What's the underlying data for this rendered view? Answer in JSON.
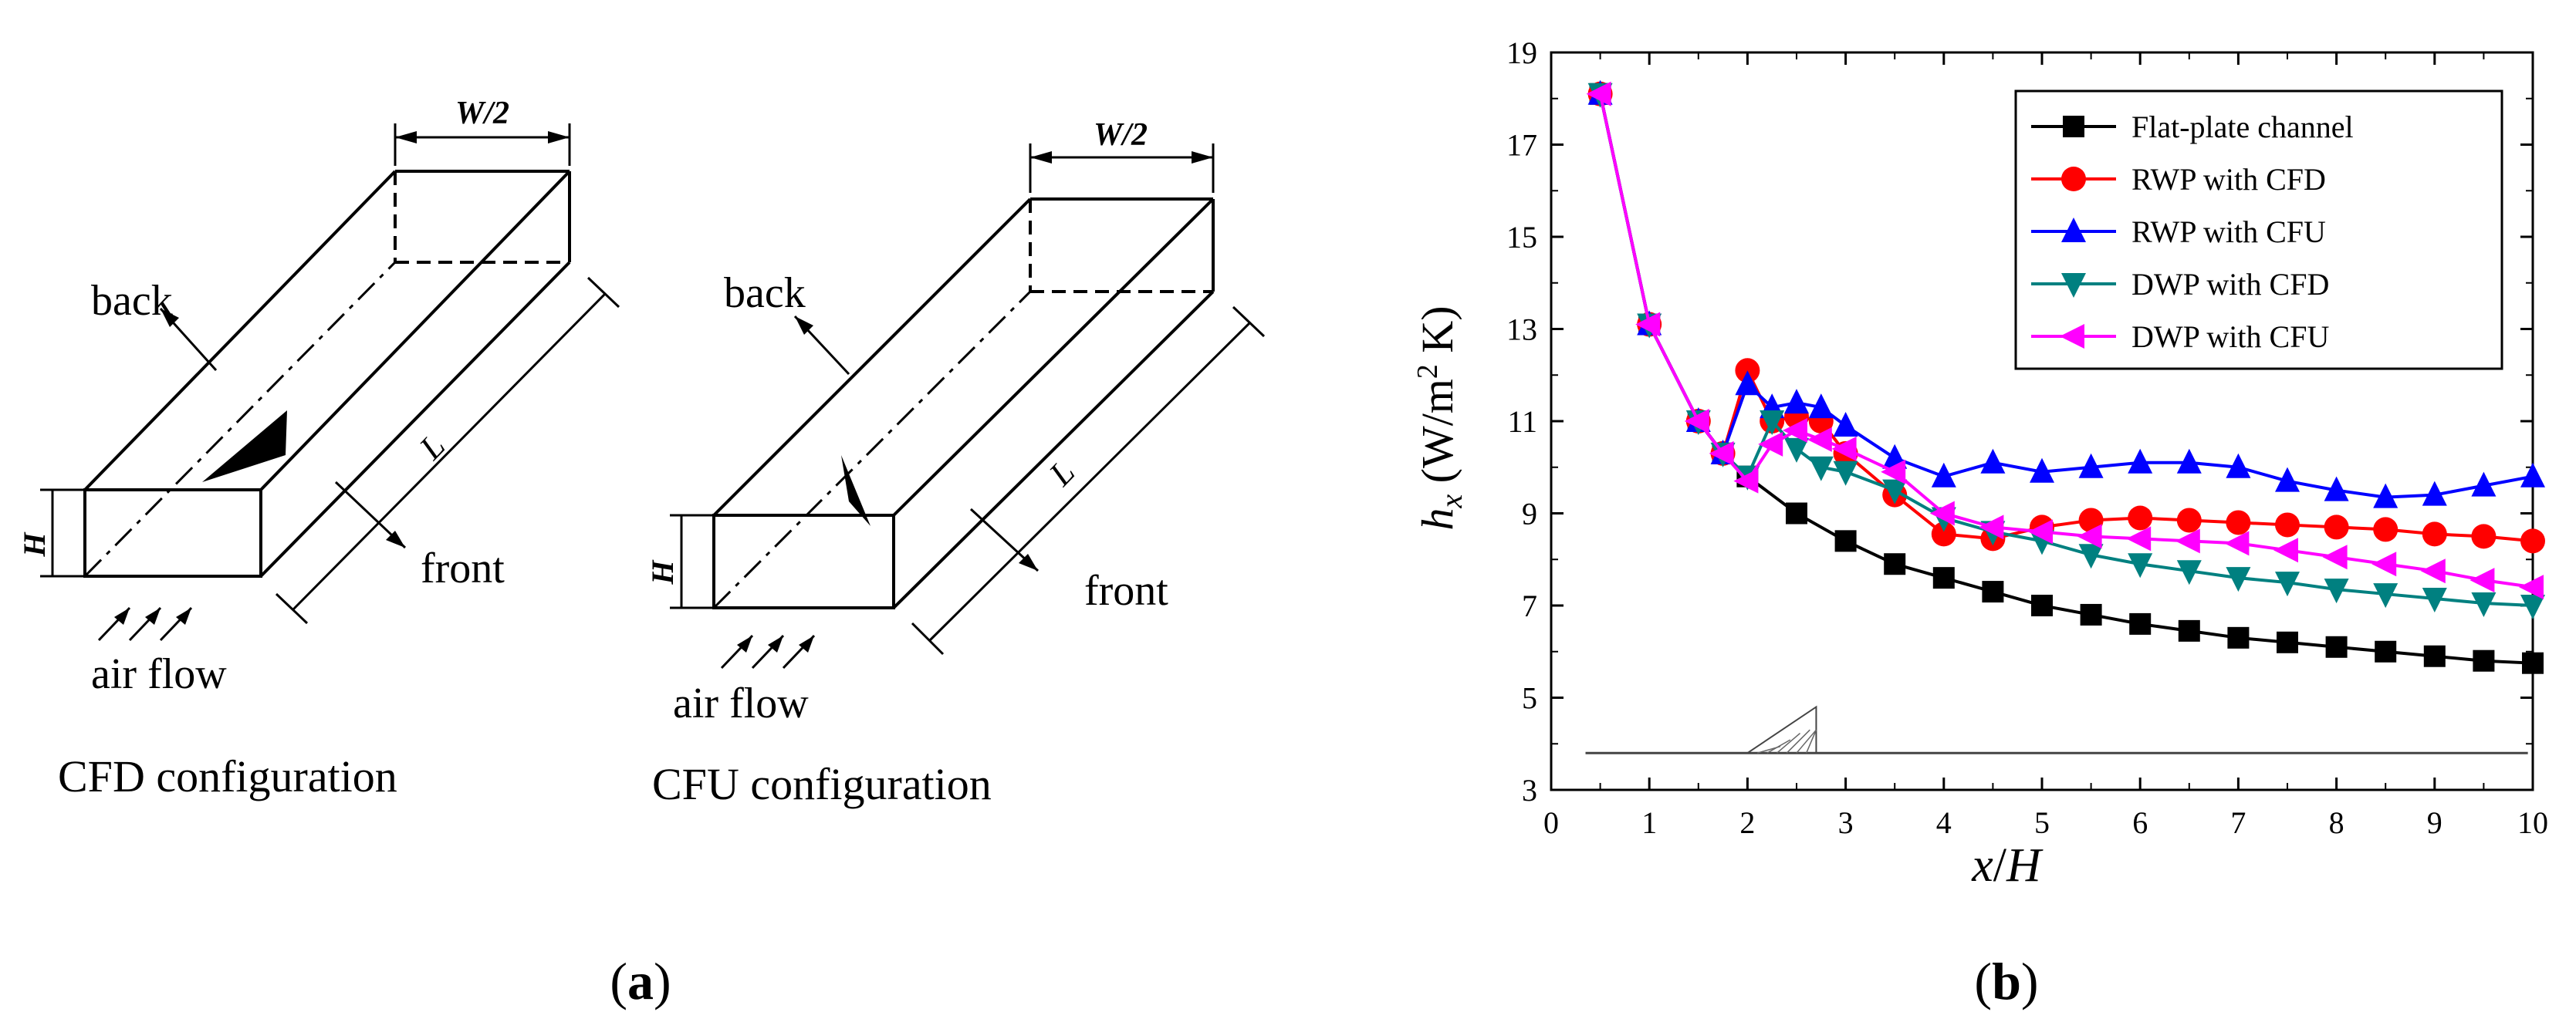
{
  "panel_a": {
    "left_diagram": {
      "dim_width": "W/2",
      "dim_length": "L",
      "dim_height": "H",
      "label_back": "back",
      "label_front": "front",
      "label_airflow": "air flow",
      "caption": "CFD configuration"
    },
    "right_diagram": {
      "dim_width": "W/2",
      "dim_length": "L",
      "dim_height": "H",
      "label_back": "back",
      "label_front": "front",
      "label_airflow": "air flow",
      "caption": "CFU configuration"
    },
    "panel_label": "a"
  },
  "panel_b": {
    "panel_label": "b"
  },
  "chart_data": {
    "type": "line",
    "xlabel": "x/H",
    "ylabel": "hx (W/m2 K)",
    "xlim": [
      0,
      10
    ],
    "ylim": [
      3,
      19
    ],
    "x_ticks": [
      "0",
      "1",
      "2",
      "3",
      "4",
      "5",
      "6",
      "7",
      "8",
      "9",
      "10"
    ],
    "y_ticks": [
      "3",
      "5",
      "7",
      "9",
      "11",
      "13",
      "15",
      "17",
      "19"
    ],
    "grid": false,
    "legend_position": "top-right",
    "baseline_y": 3.8,
    "vortex_generator_marker": {
      "x_start": 2.0,
      "x_end": 2.7,
      "height_to": 4.8
    },
    "series": [
      {
        "name": "Flat-plate channel",
        "color": "#000000",
        "marker": "square",
        "x": [
          0.5,
          1.0,
          1.5,
          1.75,
          2.0,
          2.5,
          3.0,
          3.5,
          4.0,
          4.5,
          5.0,
          5.5,
          6.0,
          6.5,
          7.0,
          7.5,
          8.0,
          8.5,
          9.0,
          9.5,
          10.0
        ],
        "y": [
          18.1,
          13.1,
          11.0,
          10.3,
          9.8,
          9.0,
          8.4,
          7.9,
          7.6,
          7.3,
          7.0,
          6.8,
          6.6,
          6.45,
          6.3,
          6.2,
          6.1,
          6.0,
          5.9,
          5.8,
          5.75
        ]
      },
      {
        "name": "RWP with CFD",
        "color": "#ff0000",
        "marker": "circle",
        "x": [
          0.5,
          1.0,
          1.5,
          1.75,
          2.0,
          2.25,
          2.5,
          2.75,
          3.0,
          3.5,
          4.0,
          4.5,
          5.0,
          5.5,
          6.0,
          6.5,
          7.0,
          7.5,
          8.0,
          8.5,
          9.0,
          9.5,
          10.0
        ],
        "y": [
          18.1,
          13.1,
          11.0,
          10.3,
          12.1,
          11.0,
          11.1,
          11.0,
          10.3,
          9.4,
          8.55,
          8.45,
          8.7,
          8.85,
          8.9,
          8.85,
          8.8,
          8.75,
          8.7,
          8.65,
          8.55,
          8.5,
          8.4
        ]
      },
      {
        "name": "RWP with CFU",
        "color": "#0000ff",
        "marker": "triangle-up",
        "x": [
          0.5,
          1.0,
          1.5,
          1.75,
          2.0,
          2.25,
          2.5,
          2.75,
          3.0,
          3.5,
          4.0,
          4.5,
          5.0,
          5.5,
          6.0,
          6.5,
          7.0,
          7.5,
          8.0,
          8.5,
          9.0,
          9.5,
          10.0
        ],
        "y": [
          18.1,
          13.1,
          11.0,
          10.3,
          11.8,
          11.3,
          11.4,
          11.3,
          10.9,
          10.2,
          9.8,
          10.1,
          9.9,
          10.0,
          10.1,
          10.1,
          10.0,
          9.7,
          9.5,
          9.35,
          9.4,
          9.6,
          9.8
        ]
      },
      {
        "name": "DWP with CFD",
        "color": "#008080",
        "marker": "triangle-down",
        "x": [
          0.5,
          1.0,
          1.5,
          1.75,
          2.0,
          2.25,
          2.5,
          2.75,
          3.0,
          3.5,
          4.0,
          4.5,
          5.0,
          5.5,
          6.0,
          6.5,
          7.0,
          7.5,
          8.0,
          8.5,
          9.0,
          9.5,
          10.0
        ],
        "y": [
          18.1,
          13.1,
          11.0,
          10.3,
          9.8,
          11.0,
          10.4,
          10.0,
          9.9,
          9.5,
          8.9,
          8.6,
          8.4,
          8.1,
          7.9,
          7.75,
          7.6,
          7.5,
          7.35,
          7.25,
          7.15,
          7.05,
          7.0
        ]
      },
      {
        "name": "DWP with CFU",
        "color": "#ff00ff",
        "marker": "triangle-left",
        "x": [
          0.5,
          1.0,
          1.5,
          1.75,
          2.0,
          2.25,
          2.5,
          2.75,
          3.0,
          3.5,
          4.0,
          4.5,
          5.0,
          5.5,
          6.0,
          6.5,
          7.0,
          7.5,
          8.0,
          8.5,
          9.0,
          9.5,
          10.0
        ],
        "y": [
          18.1,
          13.1,
          11.0,
          10.3,
          9.7,
          10.5,
          10.8,
          10.6,
          10.4,
          9.9,
          9.0,
          8.7,
          8.6,
          8.5,
          8.45,
          8.4,
          8.35,
          8.2,
          8.05,
          7.9,
          7.75,
          7.55,
          7.4
        ]
      }
    ]
  }
}
